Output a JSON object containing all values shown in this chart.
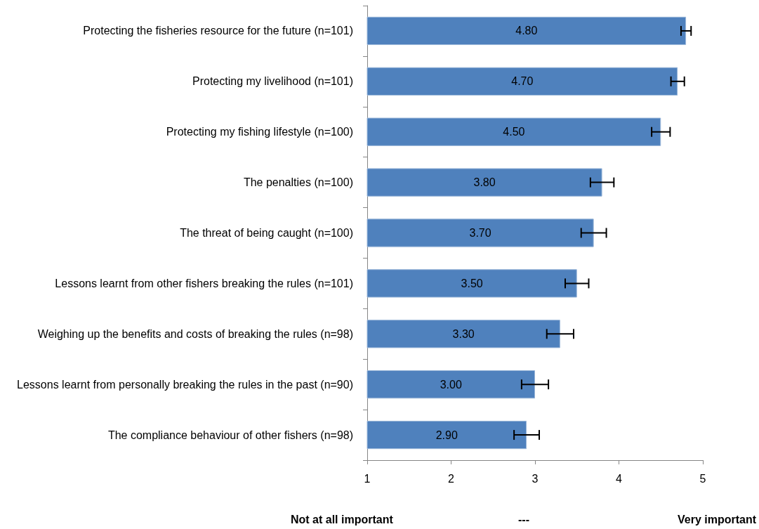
{
  "chart_data": {
    "type": "bar",
    "orientation": "horizontal",
    "categories": [
      "Protecting the fisheries resource for the future (n=101)",
      "Protecting my livelihood (n=101)",
      "Protecting my fishing lifestyle (n=100)",
      "The penalties (n=100)",
      "The threat of being caught (n=100)",
      "Lessons learnt from other fishers breaking the rules (n=101)",
      "Weighing up the benefits and costs of breaking the rules (n=98)",
      "Lessons learnt from personally breaking the rules in the past (n=90)",
      "The compliance behaviour of other fishers (n=98)"
    ],
    "values": [
      4.8,
      4.7,
      4.5,
      3.8,
      3.7,
      3.5,
      3.3,
      3.0,
      2.9
    ],
    "value_labels": [
      "4.80",
      "4.70",
      "4.50",
      "3.80",
      "3.70",
      "3.50",
      "3.30",
      "3.00",
      "2.90"
    ],
    "errors": [
      0.06,
      0.08,
      0.11,
      0.14,
      0.15,
      0.14,
      0.16,
      0.16,
      0.15
    ],
    "color": "#4f81bd",
    "xlim": [
      1,
      5
    ],
    "xticks": [
      1,
      2,
      3,
      4,
      5
    ],
    "grid": false,
    "annotations": [
      "Not at all important",
      "---",
      "Very important"
    ]
  }
}
